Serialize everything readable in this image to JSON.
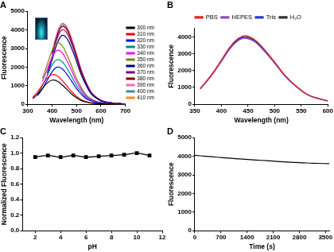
{
  "chart_data": [
    {
      "type": "line",
      "title": "A",
      "x_label": "Wavelength (nm)",
      "y_label": "Fluorescence",
      "x": [
        300,
        320,
        340,
        360,
        380,
        400,
        420,
        440,
        460,
        480,
        500,
        520,
        540,
        560,
        580,
        600,
        620,
        640,
        660,
        680,
        700
      ],
      "series": [
        {
          "name": "300 nm",
          "color": "#000000",
          "values": [
            null,
            300,
            545,
            845,
            1145,
            1300,
            1250,
            1055,
            805,
            545,
            350,
            195,
            115,
            65,
            40,
            25,
            13,
            10,
            5,
            5,
            0
          ]
        },
        {
          "name": "310 nm",
          "color": "#ff0000",
          "values": [
            null,
            370,
            670,
            1040,
            1410,
            1600,
            1535,
            1295,
            990,
            670,
            430,
            240,
            145,
            80,
            50,
            30,
            15,
            15,
            5,
            5,
            0
          ]
        },
        {
          "name": "320 nm",
          "color": "#0000ff",
          "values": [
            null,
            null,
            460,
            840,
            1300,
            1760,
            2000,
            1920,
            1620,
            1240,
            840,
            540,
            300,
            180,
            100,
            60,
            40,
            20,
            20,
            5,
            0
          ]
        },
        {
          "name": "330 nm",
          "color": "#008b8b",
          "values": [
            null,
            null,
            550,
            1010,
            1560,
            2110,
            2400,
            2305,
            1945,
            1490,
            1010,
            650,
            360,
            215,
            120,
            70,
            50,
            25,
            25,
            5,
            0
          ]
        },
        {
          "name": "340 nm",
          "color": "#ff00ff",
          "values": [
            null,
            null,
            null,
            1220,
            1885,
            2550,
            2900,
            2785,
            2350,
            1800,
            1220,
            785,
            435,
            260,
            145,
            85,
            60,
            30,
            30,
            10,
            0
          ]
        },
        {
          "name": "350 nm",
          "color": "#808000",
          "values": [
            null,
            null,
            null,
            1385,
            2145,
            2905,
            3300,
            3170,
            2675,
            2045,
            1385,
            890,
            495,
            295,
            165,
            100,
            65,
            35,
            35,
            10,
            0
          ]
        },
        {
          "name": "360 nm",
          "color": "#000080",
          "values": [
            null,
            null,
            null,
            null,
            1555,
            2405,
            3255,
            3700,
            3550,
            3000,
            2295,
            1555,
            1000,
            555,
            335,
            185,
            110,
            75,
            35,
            35,
            0
          ]
        },
        {
          "name": "370 nm",
          "color": "#800080",
          "values": [
            null,
            null,
            null,
            null,
            1680,
            2600,
            3520,
            4000,
            3840,
            3240,
            2480,
            1680,
            1080,
            600,
            360,
            200,
            120,
            80,
            40,
            40,
            0
          ]
        },
        {
          "name": "380 nm",
          "color": "#800000",
          "values": [
            null,
            null,
            null,
            null,
            null,
            2730,
            3695,
            4200,
            4030,
            3400,
            2605,
            1765,
            1135,
            630,
            380,
            210,
            125,
            85,
            40,
            40,
            0
          ]
        },
        {
          "name": "390 nm",
          "color": "#ff69b4",
          "values": [
            null,
            null,
            null,
            null,
            null,
            2830,
            3830,
            4350,
            4175,
            3525,
            2695,
            1825,
            1175,
            655,
            390,
            220,
            130,
            85,
            45,
            45,
            0
          ]
        },
        {
          "name": "400 nm",
          "color": "#4682b4",
          "values": [
            null,
            null,
            null,
            null,
            null,
            null,
            3785,
            4300,
            4130,
            3485,
            2665,
            1805,
            1160,
            645,
            385,
            215,
            130,
            85,
            45,
            45,
            0
          ]
        },
        {
          "name": "410 nm",
          "color": "#ff8c00",
          "values": [
            null,
            null,
            null,
            null,
            null,
            null,
            3650,
            4150,
            3985,
            3360,
            2575,
            1745,
            1120,
            620,
            375,
            210,
            125,
            85,
            40,
            40,
            0
          ]
        }
      ],
      "xlim": [
        300,
        700
      ],
      "xticks": [
        300,
        400,
        500,
        600,
        700
      ],
      "ylim": [
        0,
        5000
      ],
      "yticks": [
        0,
        1000,
        2000,
        3000,
        4000,
        5000
      ],
      "grid": false,
      "legend": "right",
      "marker": "none"
    },
    {
      "type": "line",
      "title": "B",
      "x_label": "Wavelength (nm)",
      "y_label": "Fluorescence",
      "x": [
        360,
        380,
        400,
        420,
        440,
        460,
        480,
        500,
        520,
        540,
        560,
        580,
        600
      ],
      "series": [
        {
          "name": "PBS",
          "color": "#e8231f",
          "values": [
            930,
            1700,
            2630,
            3565,
            4050,
            3890,
            3280,
            2510,
            1700,
            1095,
            610,
            365,
            200
          ]
        },
        {
          "name": "HEPES",
          "color": "#8a4fc4",
          "values": [
            895,
            1640,
            2535,
            3430,
            3900,
            3745,
            3160,
            2420,
            1640,
            1055,
            585,
            350,
            195
          ]
        },
        {
          "name": "Tris",
          "color": "#1f3fd0",
          "values": [
            910,
            1660,
            2570,
            3475,
            3950,
            3790,
            3200,
            2450,
            1660,
            1065,
            595,
            355,
            200
          ]
        },
        {
          "name": "H₂O",
          "color": "#333333",
          "values": [
            920,
            1680,
            2600,
            3520,
            4000,
            3840,
            3240,
            2480,
            1680,
            1080,
            600,
            360,
            200
          ]
        }
      ],
      "xlim": [
        350,
        600
      ],
      "xticks": [
        350,
        400,
        450,
        500,
        550,
        600
      ],
      "ylim": [
        0,
        4500
      ],
      "yticks": [
        0,
        1000,
        2000,
        3000,
        4000
      ],
      "grid": false,
      "legend": "top",
      "marker": "none"
    },
    {
      "type": "line",
      "title": "C",
      "x_label": "pH",
      "y_label": "Normalized Fluorescence",
      "x": [
        2,
        3,
        4,
        5,
        6,
        7,
        8,
        9,
        10,
        11
      ],
      "values": [
        0.95,
        0.97,
        0.95,
        0.97,
        0.95,
        0.96,
        0.97,
        0.98,
        1.0,
        0.97
      ],
      "color": "#000000",
      "marker": "square",
      "xlim": [
        1,
        12
      ],
      "xticks": [
        2,
        4,
        6,
        8,
        10,
        12
      ],
      "ylim": [
        0,
        1.2
      ],
      "yticks": [
        {
          "value": 0,
          "label": "0.0"
        },
        0.2,
        0.4,
        0.6,
        0.8,
        {
          "value": 1,
          "label": "1.0"
        },
        1.2
      ],
      "grid": false
    },
    {
      "type": "line",
      "title": "D",
      "x_label": "Time (s)",
      "y_label": "Fluorescence",
      "x": [
        0,
        300,
        600,
        900,
        1200,
        1500,
        1800,
        2100,
        2400,
        2700,
        3000,
        3300,
        3600
      ],
      "values": [
        4050,
        4000,
        3950,
        3900,
        3860,
        3820,
        3780,
        3740,
        3700,
        3670,
        3640,
        3620,
        3600
      ],
      "color": "#000000",
      "marker": "none",
      "xlim": [
        0,
        3600
      ],
      "xticks": [
        0,
        700,
        1400,
        2100,
        2800,
        3500
      ],
      "ylim": [
        0,
        5000
      ],
      "yticks": [
        0,
        1000,
        2000,
        3000,
        4000,
        5000
      ],
      "grid": false
    }
  ]
}
